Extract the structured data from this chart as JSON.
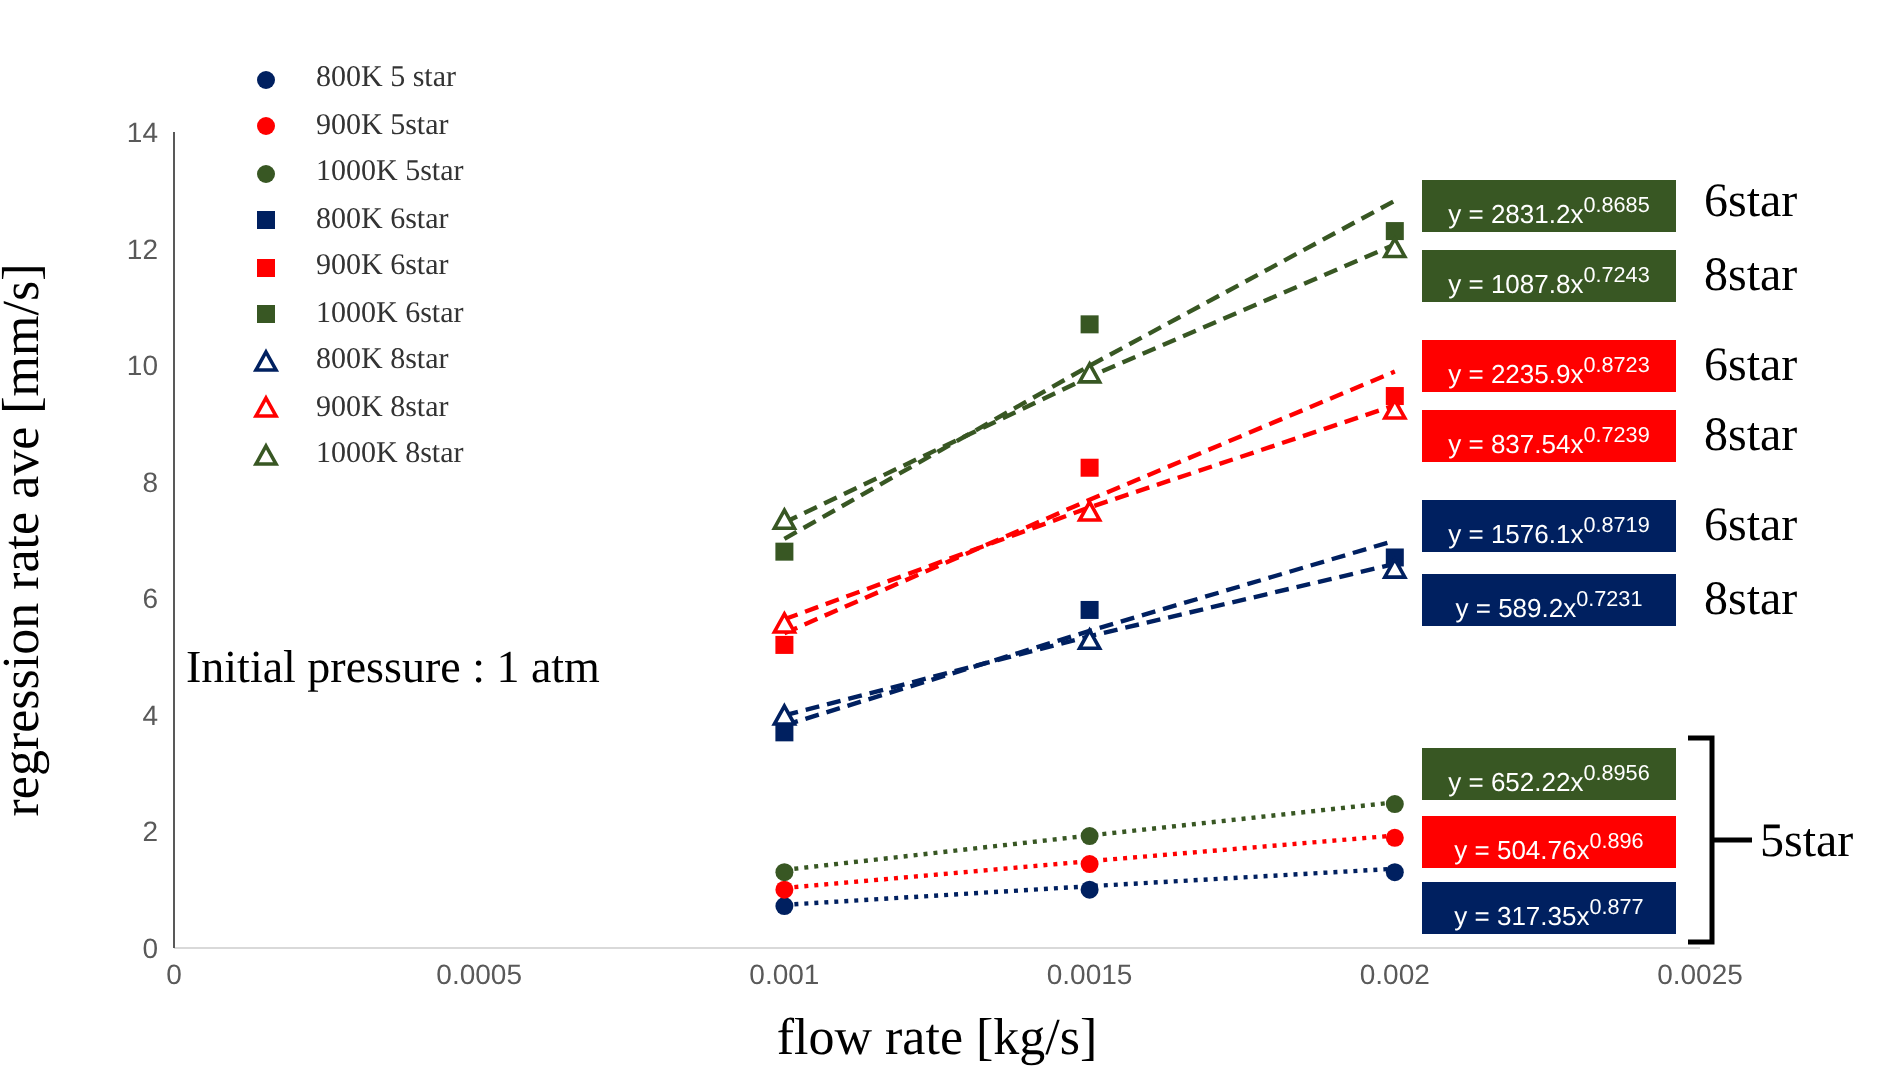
{
  "chart_data": {
    "type": "scatter",
    "xlabel": "flow rate [kg/s]",
    "ylabel": "regression rate ave [mm/s]",
    "xlim": [
      0,
      0.0025
    ],
    "xticks": [
      0,
      0.0005,
      0.001,
      0.0015,
      0.002,
      0.0025
    ],
    "ylim": [
      0,
      14
    ],
    "yticks": [
      0,
      2,
      4,
      6,
      8,
      10,
      12,
      14
    ],
    "grid": false,
    "legend": "top left",
    "x": [
      0.001,
      0.0015,
      0.002
    ],
    "series": [
      {
        "name": "800K 5 star",
        "type": "scatter",
        "marker": "circle",
        "color": "#002060",
        "values": [
          0.72,
          1.0,
          1.3
        ]
      },
      {
        "name": "900K 5star",
        "type": "scatter",
        "marker": "circle",
        "color": "#ff0000",
        "values": [
          1.0,
          1.44,
          1.89
        ]
      },
      {
        "name": "1000K 5star",
        "type": "scatter",
        "marker": "circle",
        "color": "#385723",
        "values": [
          1.3,
          1.92,
          2.47
        ]
      },
      {
        "name": "800K 6star",
        "type": "scatter",
        "marker": "square",
        "color": "#002060",
        "values": [
          3.7,
          5.8,
          6.7
        ]
      },
      {
        "name": "900K 6star",
        "type": "scatter",
        "marker": "square",
        "color": "#ff0000",
        "values": [
          5.2,
          8.24,
          9.47
        ]
      },
      {
        "name": "1000K 6star",
        "type": "scatter",
        "marker": "square",
        "color": "#385723",
        "values": [
          6.8,
          10.7,
          12.3
        ]
      },
      {
        "name": "800K 8star",
        "type": "scatter",
        "marker": "triangle",
        "color": "#002060",
        "values": [
          3.98,
          5.28,
          6.5
        ]
      },
      {
        "name": "900K 8star",
        "type": "scatter",
        "marker": "triangle",
        "color": "#ff0000",
        "values": [
          5.56,
          7.48,
          9.23
        ]
      },
      {
        "name": "1000K 8star",
        "type": "scatter",
        "marker": "triangle",
        "color": "#385723",
        "values": [
          7.34,
          9.85,
          12.0
        ]
      },
      {
        "type": "line",
        "line_style": "dashed",
        "color": "#385723",
        "values": [
          7.02,
          9.99,
          12.82
        ]
      },
      {
        "type": "line",
        "line_style": "dashed",
        "color": "#385723",
        "values": [
          7.3,
          9.8,
          12.07
        ]
      },
      {
        "type": "line",
        "line_style": "dashed",
        "color": "#ff0000",
        "values": [
          5.4,
          7.69,
          9.89
        ]
      },
      {
        "type": "line",
        "line_style": "dashed",
        "color": "#ff0000",
        "values": [
          5.64,
          7.56,
          9.31
        ]
      },
      {
        "type": "line",
        "line_style": "dashed",
        "color": "#002060",
        "values": [
          3.82,
          5.44,
          6.99
        ]
      },
      {
        "type": "line",
        "line_style": "dashed",
        "color": "#002060",
        "values": [
          3.99,
          5.35,
          6.59
        ]
      },
      {
        "type": "line",
        "line_style": "dotted",
        "color": "#385723",
        "values": [
          1.34,
          1.93,
          2.5
        ]
      },
      {
        "type": "line",
        "line_style": "dotted",
        "color": "#ff0000",
        "values": [
          1.03,
          1.49,
          1.93
        ]
      },
      {
        "type": "line",
        "line_style": "dotted",
        "color": "#002060",
        "values": [
          0.74,
          1.06,
          1.36
        ]
      }
    ],
    "annotations": [
      "y = 2831.2x$^{0.8685}$",
      "y = 1087.8x$^{0.7243}$",
      "y = 2235.9x$^{0.8723}$",
      "y = 837.54x$^{0.7239}$",
      "y = 1576.1x$^{0.8719}$",
      "y = 589.2x$^{0.7231}$",
      "y = 652.22x$^{0.8956}$",
      "y = 504.76x$^{0.896}$",
      "y = 317.35x$^{0.877}$",
      "6star",
      "8star",
      "6star",
      "8star",
      "6star",
      "8star",
      "5star",
      "Initial pressure : 1 atm"
    ]
  }
}
